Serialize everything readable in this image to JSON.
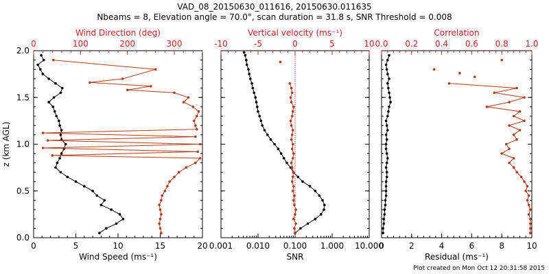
{
  "header": {
    "line1": "VAD_08_20150630_011616, 20150630.011635",
    "line2": "Nbeams = 8, Elevation angle = 70.0°, scan duration = 31.8 s, SNR Threshold = 0.008"
  },
  "footer": "Plot created on Mon Oct 12 20:31:58 2015",
  "colors": {
    "black_series": "#000000",
    "red_series": "#b23a1c",
    "red_axis": "#cc2222"
  },
  "chart_data": [
    {
      "type": "line",
      "panel": "wind",
      "title": "",
      "ylabel": "z (km AGL)",
      "ylim": [
        0,
        2
      ],
      "yticks": [
        "0.0",
        "0.5",
        "1.0",
        "1.5",
        "2.0"
      ],
      "bottom_axis": {
        "label": "Wind Speed (ms⁻¹)",
        "range": [
          0,
          20
        ],
        "ticks": [
          "0",
          "5",
          "10",
          "15",
          "20"
        ]
      },
      "top_axis": {
        "label": "Wind Direction (deg)",
        "range": [
          0,
          360
        ],
        "ticks": [
          "0",
          "100",
          "200",
          "300"
        ]
      },
      "series": [
        {
          "name": "Wind Speed",
          "axis": "bottom",
          "color": "black",
          "y": [
            0.05,
            0.1,
            0.15,
            0.2,
            0.25,
            0.3,
            0.35,
            0.4,
            0.45,
            0.5,
            0.55,
            0.6,
            0.65,
            0.7,
            0.75,
            0.8,
            0.85,
            0.9,
            0.95,
            1.0,
            1.05,
            1.1,
            1.15,
            1.2,
            1.25,
            1.3,
            1.35,
            1.4,
            1.45,
            1.5,
            1.55,
            1.6,
            1.65,
            1.7,
            1.75,
            1.8,
            1.85,
            1.9,
            1.95
          ],
          "x": [
            7.8,
            8.6,
            9.8,
            10.6,
            10.2,
            9.2,
            8.0,
            8.4,
            7.5,
            7.0,
            6.0,
            5.0,
            4.0,
            3.2,
            2.6,
            2.8,
            3.1,
            3.3,
            3.6,
            3.8,
            3.3,
            3.2,
            3.3,
            3.1,
            3.0,
            2.7,
            2.5,
            2.3,
            1.8,
            2.4,
            3.2,
            3.4,
            2.6,
            1.8,
            1.1,
            0.8,
            0.5,
            1.2,
            0.9
          ]
        },
        {
          "name": "Wind Direction",
          "axis": "top",
          "color": "red",
          "y": [
            0.05,
            0.1,
            0.15,
            0.2,
            0.25,
            0.3,
            0.35,
            0.4,
            0.45,
            0.5,
            0.55,
            0.6,
            0.65,
            0.7,
            0.75,
            0.8,
            0.85,
            0.88,
            0.92,
            0.96,
            1.0,
            1.04,
            1.08,
            1.12,
            1.16,
            1.2,
            1.25,
            1.3,
            1.35,
            1.4,
            1.45,
            1.5,
            1.55,
            1.58,
            1.62,
            1.66,
            1.7,
            1.8,
            1.9
          ],
          "x": [
            272,
            270,
            268,
            270,
            272,
            270,
            268,
            272,
            274,
            280,
            285,
            290,
            300,
            310,
            325,
            345,
            355,
            40,
            350,
            20,
            355,
            30,
            345,
            20,
            348,
            345,
            342,
            348,
            352,
            340,
            320,
            330,
            300,
            200,
            250,
            120,
            190,
            260,
            42
          ]
        }
      ]
    },
    {
      "type": "line",
      "panel": "vertical",
      "title": "",
      "ylim": [
        0,
        2
      ],
      "bottom_axis": {
        "label": "SNR",
        "scale": "log",
        "range": [
          0.001,
          10
        ],
        "ticks": [
          "0.001",
          "0.010",
          "0.100",
          "1.000",
          "10.000"
        ]
      },
      "top_axis": {
        "label": "Vertical velocity (ms⁻¹)",
        "range": [
          -10,
          10
        ],
        "ticks": [
          "-10",
          "-5",
          "0",
          "5",
          "10"
        ]
      },
      "series": [
        {
          "name": "SNR",
          "axis": "bottom",
          "color": "black",
          "y": [
            0.05,
            0.1,
            0.15,
            0.2,
            0.25,
            0.3,
            0.35,
            0.4,
            0.45,
            0.5,
            0.55,
            0.6,
            0.65,
            0.7,
            0.75,
            0.8,
            0.85,
            0.9,
            0.95,
            1.0,
            1.05,
            1.1,
            1.15,
            1.2,
            1.25,
            1.3,
            1.35,
            1.4,
            1.45,
            1.5,
            1.55,
            1.6,
            1.65,
            1.7,
            1.75,
            1.8,
            1.85,
            1.9,
            1.95
          ],
          "x": [
            0.1,
            0.14,
            0.22,
            0.35,
            0.5,
            0.6,
            0.62,
            0.55,
            0.45,
            0.35,
            0.25,
            0.16,
            0.12,
            0.09,
            0.075,
            0.06,
            0.05,
            0.042,
            0.035,
            0.028,
            0.022,
            0.018,
            0.015,
            0.013,
            0.012,
            0.011,
            0.01,
            0.0095,
            0.009,
            0.0085,
            0.0078,
            0.0072,
            0.0068,
            0.0062,
            0.0058,
            0.0055,
            0.005,
            0.0048,
            0.0045
          ]
        },
        {
          "name": "Vertical velocity",
          "axis": "top",
          "color": "red",
          "y": [
            0.05,
            0.1,
            0.15,
            0.2,
            0.25,
            0.3,
            0.35,
            0.4,
            0.45,
            0.5,
            0.55,
            0.6,
            0.65,
            0.7,
            0.75,
            0.8,
            0.85,
            0.9,
            0.95,
            1.0,
            1.05,
            1.1,
            1.15,
            1.2,
            1.25,
            1.3,
            1.35,
            1.4,
            1.45,
            1.5,
            1.55,
            1.6,
            1.65
          ],
          "x": [
            0.0,
            -0.1,
            0.1,
            -0.2,
            0.0,
            0.1,
            -0.1,
            -0.2,
            -0.1,
            -0.3,
            -0.2,
            -0.4,
            -0.3,
            -0.2,
            -0.4,
            -0.5,
            -0.3,
            -0.2,
            -0.4,
            -0.3,
            -0.5,
            -0.4,
            -0.3,
            -0.5,
            -0.6,
            -0.4,
            -0.3,
            -0.2,
            -0.5,
            -0.6,
            -0.4,
            -0.5,
            -0.7
          ]
        }
      ],
      "extra_points": [
        {
          "color": "red",
          "x": -2.0,
          "y": 1.88
        },
        {
          "color": "black",
          "x_snr": 0.0042,
          "y": 1.98
        }
      ],
      "zero_line": "dotted red at 0 ms⁻¹"
    },
    {
      "type": "line",
      "panel": "residual",
      "title": "",
      "ylim": [
        0,
        2
      ],
      "bottom_axis": {
        "label": "Residual (ms⁻¹)",
        "range": [
          0,
          10
        ],
        "ticks": [
          "0",
          "2",
          "4",
          "6",
          "8",
          "10"
        ]
      },
      "top_axis": {
        "label": "Correlation",
        "range": [
          0,
          1
        ],
        "ticks": [
          "0.0",
          "0.2",
          "0.4",
          "0.6",
          "0.8",
          "1.0"
        ]
      },
      "series": [
        {
          "name": "Residual",
          "axis": "bottom",
          "color": "black",
          "y": [
            0.05,
            0.1,
            0.15,
            0.2,
            0.25,
            0.3,
            0.35,
            0.4,
            0.45,
            0.5,
            0.55,
            0.6,
            0.65,
            0.7,
            0.75,
            0.8,
            0.85,
            0.9,
            0.95,
            1.0,
            1.05,
            1.1,
            1.15,
            1.2,
            1.25,
            1.3,
            1.35,
            1.4,
            1.45,
            1.5,
            1.55,
            1.6,
            1.65,
            1.7,
            1.75,
            1.8,
            1.85,
            1.9,
            1.95
          ],
          "x": [
            0.1,
            0.1,
            0.15,
            0.15,
            0.2,
            0.2,
            0.25,
            0.25,
            0.3,
            0.3,
            0.3,
            0.3,
            0.35,
            0.35,
            0.3,
            0.35,
            0.4,
            0.35,
            0.3,
            0.3,
            0.35,
            0.3,
            0.4,
            0.35,
            0.3,
            0.4,
            0.45,
            0.5,
            0.6,
            0.55,
            0.5,
            0.45,
            0.4,
            0.5,
            0.4,
            0.35,
            0.3,
            0.4,
            0.5
          ]
        },
        {
          "name": "Correlation",
          "axis": "top",
          "color": "red",
          "y": [
            0.05,
            0.1,
            0.15,
            0.2,
            0.25,
            0.3,
            0.35,
            0.4,
            0.45,
            0.5,
            0.55,
            0.6,
            0.65,
            0.7,
            0.75,
            0.8,
            0.85,
            0.9,
            0.95,
            1.0,
            1.05,
            1.1,
            1.15,
            1.2,
            1.25,
            1.3,
            1.35,
            1.4,
            1.45,
            1.5,
            1.55,
            1.6,
            1.65
          ],
          "x": [
            0.99,
            0.99,
            0.99,
            0.99,
            0.98,
            0.99,
            0.98,
            0.97,
            0.98,
            0.96,
            0.97,
            0.95,
            0.93,
            0.9,
            0.88,
            0.85,
            0.88,
            0.8,
            0.85,
            0.83,
            0.9,
            0.88,
            0.92,
            0.85,
            0.95,
            0.88,
            0.92,
            0.7,
            0.85,
            0.95,
            0.75,
            0.9,
            0.45
          ]
        }
      ],
      "extra_points": [
        {
          "color": "red",
          "x": 0.62,
          "y": 1.72
        },
        {
          "color": "red",
          "x": 0.52,
          "y": 1.76
        },
        {
          "color": "red",
          "x": 0.35,
          "y": 1.8
        },
        {
          "color": "red",
          "x": 0.8,
          "y": 1.9
        }
      ]
    }
  ]
}
